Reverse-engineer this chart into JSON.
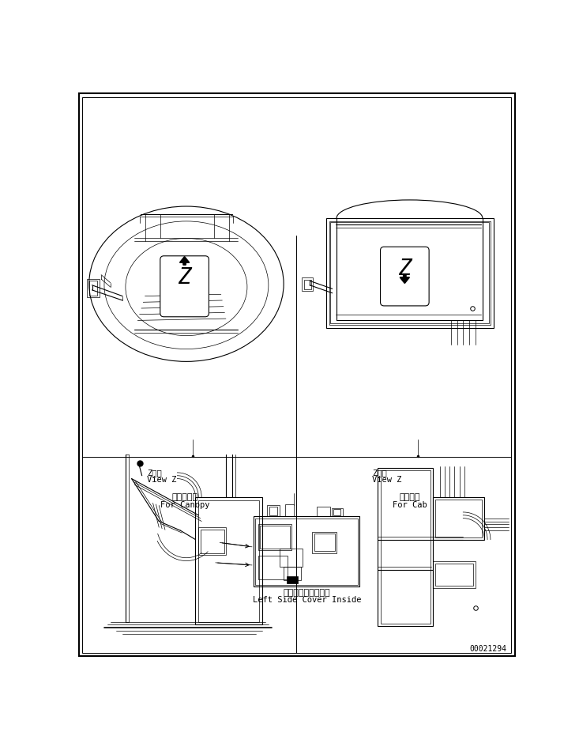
{
  "bg_color": "#ffffff",
  "line_color": "#000000",
  "fig_width": 7.33,
  "fig_height": 9.4,
  "dpi": 100,
  "label_canopy_jp": "キャノピ用",
  "label_canopy_en": "For Canopy",
  "label_cab_jp": "キャブ用",
  "label_cab_en": "For Cab",
  "label_viewz_jp": "Z　視",
  "label_viewz_en": "View Z",
  "label_side_jp": "左サイドカバー内側",
  "label_side_en": "Left Side Cover Inside",
  "part_number": "00021294"
}
